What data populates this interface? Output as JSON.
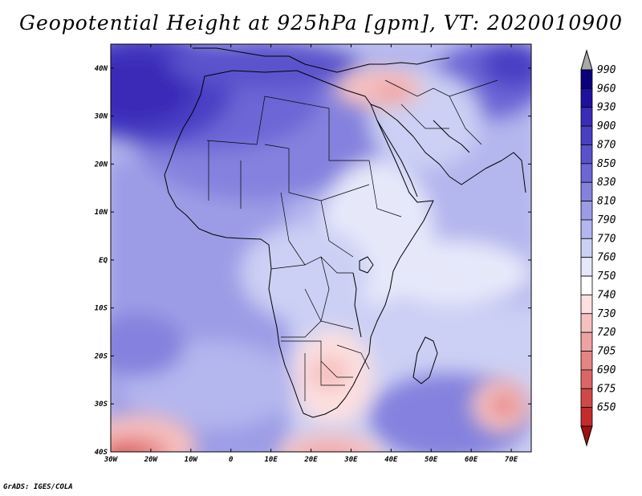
{
  "title": "Geopotential Height at 925hPa [gpm], VT: 2020010900",
  "credit": "GrADS: IGES/COLA",
  "map": {
    "lon_labels": [
      "30W",
      "20W",
      "10W",
      "0",
      "10E",
      "20E",
      "30E",
      "40E",
      "50E",
      "60E",
      "70E"
    ],
    "lon_values": [
      -30,
      -20,
      -10,
      0,
      10,
      20,
      30,
      40,
      50,
      60,
      70
    ],
    "lat_labels": [
      "40N",
      "30N",
      "20N",
      "10N",
      "EQ",
      "10S",
      "20S",
      "30S",
      "40S"
    ],
    "lat_values": [
      40,
      30,
      20,
      10,
      0,
      -10,
      -20,
      -30,
      -40
    ],
    "lon_range": [
      -30,
      75
    ],
    "lat_range": [
      -40,
      45
    ]
  },
  "colorbar": {
    "labels": [
      "990",
      "960",
      "930",
      "900",
      "870",
      "850",
      "830",
      "810",
      "790",
      "770",
      "760",
      "750",
      "740",
      "730",
      "720",
      "705",
      "690",
      "675",
      "650"
    ],
    "colors": [
      "#0a007d",
      "#2010a0",
      "#3a2cb8",
      "#4a3fc4",
      "#5a52cc",
      "#6c66d6",
      "#8482de",
      "#9c9ce6",
      "#b4b6ee",
      "#ccd0f4",
      "#e6e8fa",
      "#ffffff",
      "#fde0e0",
      "#f6c0c0",
      "#eea2a2",
      "#e68484",
      "#dc6666",
      "#d04848",
      "#c42c2c",
      "#b41414"
    ],
    "top_color": "#a8a8a8",
    "bottom_color": "#a01010"
  }
}
